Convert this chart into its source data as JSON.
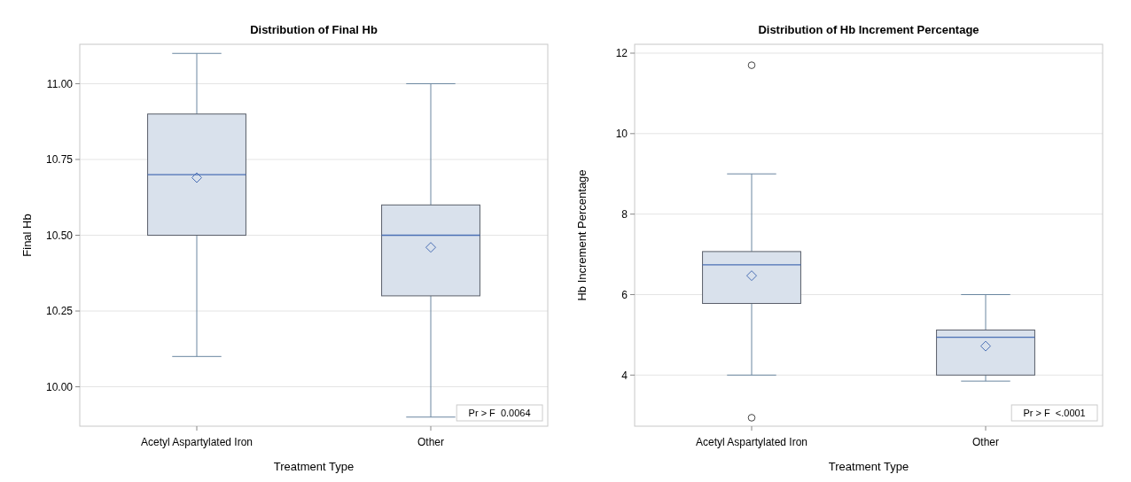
{
  "chart_data": [
    {
      "type": "box",
      "title": "Distribution of Final  Hb",
      "xlabel": "Treatment  Type",
      "ylabel": "Final  Hb",
      "categories": [
        "Acetyl  Aspartylated Iron",
        "Other"
      ],
      "color": "#d9e1ec",
      "boxes": [
        {
          "low": 10.1,
          "q1": 10.5,
          "median": 10.7,
          "q3": 10.9,
          "high": 11.1,
          "mean": 10.69
        },
        {
          "low": 9.9,
          "q1": 10.3,
          "median": 10.5,
          "q3": 10.6,
          "high": 11.0,
          "mean": 10.46
        }
      ],
      "ylim": [
        9.87,
        11.13
      ],
      "yticks": [
        {
          "value": 10,
          "label": "10.00"
        },
        {
          "value": 10.25,
          "label": "10.25"
        },
        {
          "value": 10.5,
          "label": "10.50"
        },
        {
          "value": 10.75,
          "label": "10.75"
        },
        {
          "value": 11,
          "label": "11.00"
        }
      ],
      "grid": "y",
      "annotations": [
        "Pr > F  0.0064"
      ]
    },
    {
      "type": "box",
      "title": "Distribution of Hb  Increment  Percentage",
      "xlabel": "Treatment  Type",
      "ylabel": "Hb  Increment  Percentage",
      "categories": [
        "Acetyl  Aspartylated Iron",
        "Other"
      ],
      "color": "#d9e1ec",
      "boxes": [
        {
          "low": 4.0,
          "q1": 5.78,
          "median": 6.74,
          "q3": 7.07,
          "high": 9.0,
          "mean": 6.47,
          "outliers": [
            11.7,
            2.94
          ]
        },
        {
          "low": 3.85,
          "q1": 4.0,
          "median": 4.94,
          "q3": 5.12,
          "high": 6.0,
          "mean": 4.72
        }
      ],
      "ylim": [
        2.73,
        12.22
      ],
      "yticks": [
        4,
        6,
        8,
        10,
        12
      ],
      "grid": "y",
      "annotations": [
        "Pr > F  <.0001"
      ]
    }
  ]
}
